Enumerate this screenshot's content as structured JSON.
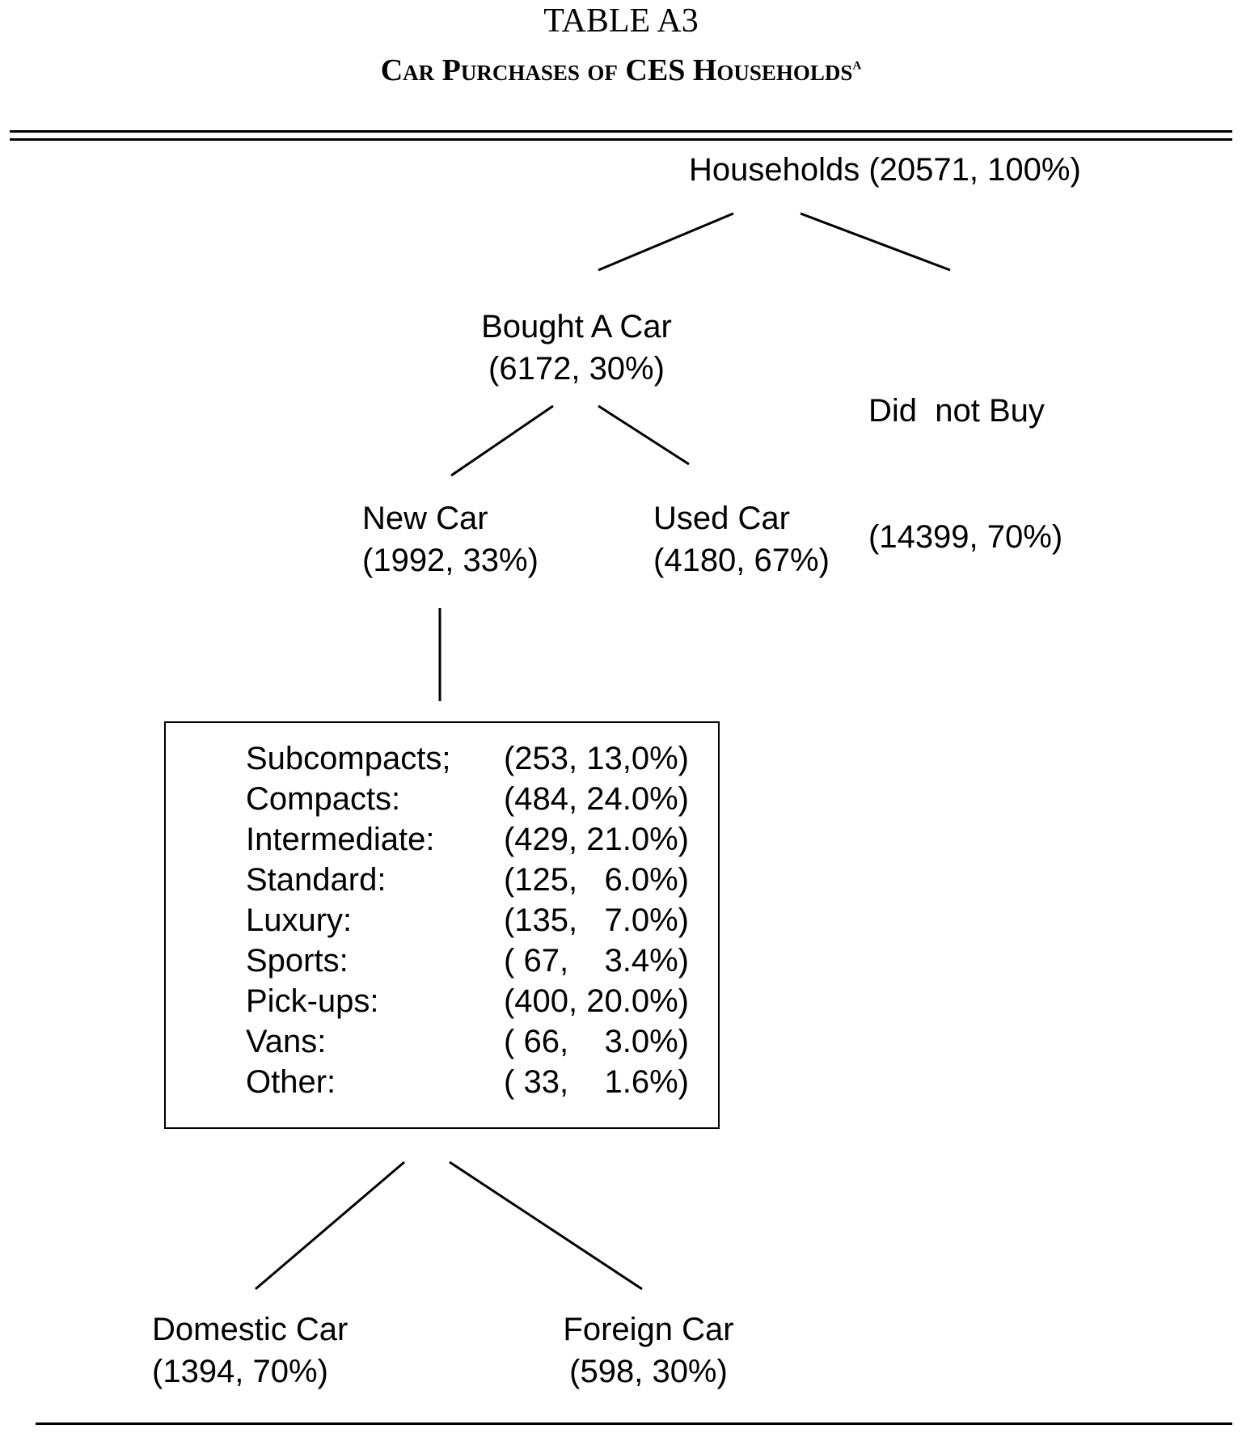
{
  "header": {
    "title": "TABLE A3",
    "subtitle": "Car Purchases of CES Households",
    "footnote_mark": "a"
  },
  "tree": {
    "root": {
      "label": "Households (20571, 100%)"
    },
    "bought": {
      "label": "Bought A Car",
      "value": "(6172, 30%)"
    },
    "did_not_buy": {
      "label": "Did  not Buy",
      "value": "(14399, 70%)"
    },
    "new_car": {
      "label": "New Car",
      "value": "(1992, 33%)"
    },
    "used_car": {
      "label": "Used Car",
      "value": "(4180, 67%)"
    },
    "categories": [
      {
        "label": "Subcompacts;",
        "value": "(253, 13,0%)"
      },
      {
        "label": "Compacts:",
        "value": "(484, 24.0%)"
      },
      {
        "label": "Intermediate:",
        "value": "(429, 21.0%)"
      },
      {
        "label": "Standard:",
        "value": "(125,   6.0%)"
      },
      {
        "label": "Luxury:",
        "value": "(135,   7.0%)"
      },
      {
        "label": "Sports:",
        "value": "( 67,    3.4%)"
      },
      {
        "label": "Pick-ups:",
        "value": "(400, 20.0%)"
      },
      {
        "label": "Vans:",
        "value": "( 66,    3.0%)"
      },
      {
        "label": "Other:",
        "value": "( 33,    1.6%)"
      }
    ],
    "domestic": {
      "label": "Domestic Car",
      "value": "(1394, 70%)"
    },
    "foreign": {
      "label": "Foreign Car",
      "value": "(598, 30%)"
    }
  }
}
